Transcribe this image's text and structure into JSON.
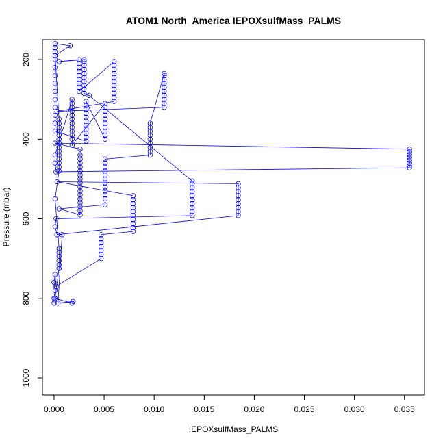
{
  "chart_data": {
    "type": "line",
    "markers": "open-circle",
    "color": "#0000ff",
    "title": "ATOM1 North_America IEPOXsulfMass_PALMS",
    "x_label": "IEPOXsulfMass_PALMS",
    "y_label": "Pressure (mbar)",
    "xlim": [
      -0.00116,
      0.037
    ],
    "ylim": [
      1043,
      150
    ],
    "xticks": [
      {
        "value": 0,
        "label": "0.000"
      },
      {
        "value": 0.005,
        "label": "0.005"
      },
      {
        "value": 0.01,
        "label": "0.010"
      },
      {
        "value": 0.015,
        "label": "0.015"
      },
      {
        "value": 0.02,
        "label": "0.020"
      },
      {
        "value": 0.025,
        "label": "0.025"
      },
      {
        "value": 0.03,
        "label": "0.030"
      },
      {
        "value": 0.035,
        "label": "0.035"
      }
    ],
    "yticks": [
      200,
      400,
      600,
      800,
      1000
    ],
    "x": [
      0,
      0,
      0.0001,
      0,
      0.0001,
      0.0002,
      0.0047,
      0.0047,
      0.0047,
      0.0047,
      0.0047,
      0.0047,
      0.0047,
      0.0079,
      0.0079,
      0.0079,
      0.0079,
      0.0079,
      0.0079,
      0.0079,
      0.0079,
      0.0079,
      0.0079,
      0.0003,
      0.0184,
      0.0184,
      0.0184,
      0.0184,
      0.0184,
      0.0184,
      0.0184,
      0.0184,
      0.0184,
      0.0003,
      0.0001,
      0.0002,
      0.0138,
      0.0138,
      0.0138,
      0.0138,
      0.0138,
      0.0138,
      0.0138,
      0.0138,
      0.0138,
      0.0138,
      0.0035,
      0.003,
      0.003,
      0.003,
      0.003,
      0.003,
      0.003,
      0.003,
      0.003,
      0.003,
      0.003,
      0.0005,
      0.0025,
      0.0025,
      0.0025,
      0.0025,
      0.0025,
      0.0025,
      0.0025,
      0.0025,
      0.0025,
      0.006,
      0.006,
      0.006,
      0.006,
      0.006,
      0.006,
      0.006,
      0.006,
      0.006,
      0.006,
      0.006,
      0.0003,
      0.011,
      0.011,
      0.011,
      0.011,
      0.011,
      0.011,
      0.011,
      0.011,
      0.011,
      0.011,
      0.0096,
      0.0096,
      0.0096,
      0.0096,
      0.0096,
      0.0096,
      0.0096,
      0.0096,
      0.0096,
      0.0051,
      0.0051,
      0.0051,
      0.0051,
      0.0051,
      0.0051,
      0.0051,
      0.0051,
      0.0051,
      0.0051,
      0.0051,
      0.0051,
      0.0005,
      0.0026,
      0.0026,
      0.0026,
      0.0026,
      0.0026,
      0.0026,
      0.0026,
      0.0026,
      0.0026,
      0.0026,
      0.0026,
      0.0026,
      0.0026,
      0.0026,
      0.0026,
      0.0026,
      0.0026,
      0.0001,
      0.0355,
      0.0355,
      0.0355,
      0.0355,
      0.0355,
      0.0355,
      0.0355,
      0.0355,
      0.0002,
      0.0001,
      0.0001,
      0.0018,
      0.0018,
      0.0018,
      0.0018,
      0.0018,
      0.0018,
      0.0018,
      0.0018,
      0.0018,
      0.0018,
      0.0018,
      0.0018,
      0.0051,
      0.0051,
      0.0051,
      0.0051,
      0.0051,
      0.0051,
      0.0051,
      0.0051,
      0.0051,
      0.0051,
      0.0032,
      0.0032,
      0.0032,
      0.0032,
      0.0032,
      0.0032,
      0.0032,
      0.0032,
      0.0032,
      0.0032,
      0.0032,
      0.0001,
      0.0001,
      0.0001,
      0.0001,
      0.0001,
      0.0001,
      0.0001,
      0.0001,
      0.0001,
      0.0001,
      0.0001,
      0.0001,
      0.0001,
      0.0001,
      0.0016,
      0.0001,
      0.0005,
      0.0005,
      0.0005,
      0.0005,
      0.0005,
      0.0005,
      0.0005,
      0.0005,
      0.0005,
      0.0005,
      0.0005,
      0.0005,
      0.0005,
      0.0005,
      0.0001,
      0.0005,
      0.0005,
      0.0005,
      0.0005,
      0.0005,
      0.0005,
      0.0001,
      0.0018,
      0.0019,
      0.0004,
      0.0008,
      0.0003
    ],
    "values": [
      812,
      800,
      780,
      760,
      740,
      770,
      700,
      690,
      680,
      670,
      660,
      650,
      640,
      632,
      622,
      612,
      602,
      592,
      582,
      572,
      562,
      552,
      542,
      507,
      512,
      522,
      532,
      542,
      552,
      562,
      572,
      582,
      592,
      640,
      620,
      600,
      592,
      582,
      572,
      562,
      552,
      542,
      532,
      522,
      512,
      505,
      290,
      285,
      275,
      265,
      255,
      245,
      235,
      225,
      215,
      205,
      200,
      205,
      200,
      210,
      220,
      230,
      240,
      250,
      260,
      270,
      280,
      205,
      215,
      225,
      235,
      245,
      255,
      265,
      275,
      285,
      295,
      305,
      330,
      320,
      310,
      300,
      290,
      280,
      270,
      260,
      250,
      240,
      235,
      360,
      370,
      380,
      390,
      400,
      410,
      420,
      430,
      440,
      450,
      460,
      470,
      480,
      490,
      500,
      510,
      520,
      530,
      540,
      550,
      565,
      575,
      590,
      580,
      570,
      560,
      550,
      540,
      530,
      520,
      510,
      500,
      490,
      480,
      470,
      460,
      450,
      440,
      425,
      410,
      425,
      432,
      439,
      446,
      453,
      460,
      467,
      472,
      482,
      460,
      440,
      300,
      310,
      320,
      330,
      340,
      350,
      360,
      370,
      380,
      390,
      400,
      415,
      310,
      320,
      330,
      340,
      350,
      360,
      370,
      380,
      390,
      400,
      305,
      315,
      325,
      335,
      345,
      355,
      365,
      375,
      385,
      395,
      405,
      380,
      360,
      340,
      320,
      300,
      280,
      260,
      240,
      220,
      200,
      190,
      180,
      170,
      160,
      165,
      190,
      350,
      360,
      370,
      380,
      390,
      400,
      410,
      420,
      430,
      440,
      450,
      460,
      470,
      480,
      550,
      675,
      685,
      695,
      705,
      715,
      725,
      800,
      812,
      808,
      812,
      640,
      640
    ]
  }
}
